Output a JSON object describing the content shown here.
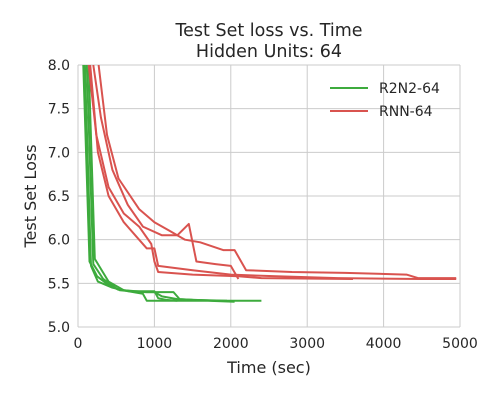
{
  "chart_data": {
    "type": "line",
    "title_lines": [
      "Test Set loss vs. Time",
      "Hidden Units: 64"
    ],
    "xlabel": "Time (sec)",
    "ylabel": "Test Set Loss",
    "xlim": [
      0,
      5000
    ],
    "ylim": [
      5.0,
      8.0
    ],
    "x_ticks": [
      "0",
      "1000",
      "2000",
      "3000",
      "4000",
      "5000"
    ],
    "y_ticks": [
      "5.0",
      "5.5",
      "6.0",
      "6.5",
      "7.0",
      "7.5",
      "8.0"
    ],
    "x_tick_values": [
      0,
      1000,
      2000,
      3000,
      4000,
      5000
    ],
    "y_tick_values": [
      5.0,
      5.5,
      6.0,
      6.5,
      7.0,
      7.5,
      8.0
    ],
    "grid": true,
    "legend_position": "top-right",
    "legend": [
      "R2N2-64",
      "RNN-64"
    ],
    "colors": {
      "R2N2-64": "#3dab3d",
      "RNN-64": "#d9534f",
      "grid": "#cbcbcb",
      "axes_bg": "#ffffff"
    },
    "series": [
      {
        "name": "R2N2-64",
        "values": [
          [
            70,
            8.0
          ],
          [
            150,
            5.75
          ],
          [
            250,
            5.58
          ],
          [
            400,
            5.48
          ],
          [
            550,
            5.42
          ],
          [
            800,
            5.4
          ],
          [
            1000,
            5.4
          ],
          [
            1100,
            5.35
          ],
          [
            1300,
            5.32
          ],
          [
            1800,
            5.3
          ],
          [
            2400,
            5.3
          ]
        ]
      },
      {
        "name": "R2N2-64",
        "values": [
          [
            90,
            8.0
          ],
          [
            170,
            5.7
          ],
          [
            260,
            5.52
          ],
          [
            450,
            5.45
          ],
          [
            650,
            5.41
          ],
          [
            850,
            5.38
          ],
          [
            900,
            5.3
          ],
          [
            1200,
            5.3
          ],
          [
            1700,
            5.3
          ],
          [
            2050,
            5.29
          ]
        ]
      },
      {
        "name": "R2N2-64",
        "values": [
          [
            115,
            8.0
          ],
          [
            200,
            5.72
          ],
          [
            330,
            5.55
          ],
          [
            520,
            5.43
          ],
          [
            700,
            5.41
          ],
          [
            1000,
            5.41
          ],
          [
            1050,
            5.33
          ],
          [
            1150,
            5.31
          ],
          [
            1300,
            5.3
          ]
        ]
      },
      {
        "name": "R2N2-64",
        "values": [
          [
            140,
            8.0
          ],
          [
            220,
            5.78
          ],
          [
            400,
            5.52
          ],
          [
            600,
            5.42
          ],
          [
            900,
            5.4
          ],
          [
            1200,
            5.4
          ],
          [
            1250,
            5.4
          ],
          [
            1330,
            5.32
          ],
          [
            1500,
            5.31
          ],
          [
            1950,
            5.3
          ]
        ]
      },
      {
        "name": "RNN-64",
        "values": [
          [
            140,
            8.0
          ],
          [
            240,
            7.2
          ],
          [
            400,
            6.6
          ],
          [
            600,
            6.3
          ],
          [
            800,
            6.15
          ],
          [
            960,
            5.95
          ],
          [
            1000,
            5.75
          ],
          [
            1050,
            5.63
          ],
          [
            1500,
            5.6
          ],
          [
            2100,
            5.58
          ],
          [
            2400,
            5.56
          ],
          [
            3600,
            5.55
          ]
        ]
      },
      {
        "name": "RNN-64",
        "values": [
          [
            160,
            8.0
          ],
          [
            260,
            7.0
          ],
          [
            400,
            6.5
          ],
          [
            600,
            6.2
          ],
          [
            800,
            6.0
          ],
          [
            900,
            5.9
          ],
          [
            1000,
            5.9
          ],
          [
            1050,
            5.7
          ],
          [
            1500,
            5.65
          ],
          [
            2000,
            5.6
          ],
          [
            2600,
            5.58
          ],
          [
            3400,
            5.56
          ],
          [
            4500,
            5.55
          ],
          [
            4950,
            5.55
          ]
        ]
      },
      {
        "name": "RNN-64",
        "values": [
          [
            200,
            8.0
          ],
          [
            300,
            7.4
          ],
          [
            450,
            6.8
          ],
          [
            650,
            6.4
          ],
          [
            850,
            6.15
          ],
          [
            1100,
            6.05
          ],
          [
            1300,
            6.05
          ],
          [
            1450,
            6.18
          ],
          [
            1550,
            5.75
          ],
          [
            1800,
            5.72
          ],
          [
            2000,
            5.7
          ],
          [
            2100,
            5.55
          ]
        ]
      },
      {
        "name": "RNN-64",
        "values": [
          [
            270,
            8.0
          ],
          [
            380,
            7.2
          ],
          [
            530,
            6.7
          ],
          [
            800,
            6.35
          ],
          [
            1000,
            6.2
          ],
          [
            1200,
            6.1
          ],
          [
            1400,
            6.0
          ],
          [
            1600,
            5.97
          ],
          [
            1900,
            5.88
          ],
          [
            2050,
            5.88
          ],
          [
            2200,
            5.65
          ],
          [
            2800,
            5.63
          ],
          [
            3500,
            5.62
          ],
          [
            4300,
            5.6
          ],
          [
            4450,
            5.56
          ],
          [
            4950,
            5.56
          ]
        ]
      }
    ]
  }
}
